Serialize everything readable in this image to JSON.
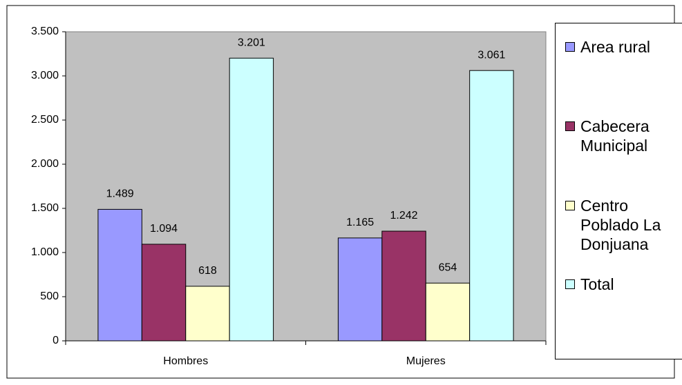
{
  "chart_data": {
    "type": "bar",
    "categories": [
      "Hombres",
      "Mujeres"
    ],
    "series": [
      {
        "name": "Area rural",
        "color": "#9999ff",
        "values": [
          1489,
          1165
        ],
        "value_labels": [
          "1.489",
          "1.165"
        ]
      },
      {
        "name": "Cabecera Municipal",
        "color": "#993366",
        "values": [
          1094,
          1242
        ],
        "value_labels": [
          "1.094",
          "1.242"
        ]
      },
      {
        "name": "Centro Poblado La Donjuana",
        "color": "#ffffcc",
        "values": [
          618,
          654
        ],
        "value_labels": [
          "618",
          "654"
        ]
      },
      {
        "name": "Total",
        "color": "#ccffff",
        "values": [
          3201,
          3061
        ],
        "value_labels": [
          "3.201",
          "3.061"
        ]
      }
    ],
    "ylim": [
      0,
      3500
    ],
    "yticks": [
      0,
      500,
      {
        "value": 1000,
        "label": "1.000"
      },
      {
        "value": 1500,
        "label": "1.500"
      },
      {
        "value": 2000,
        "label": "2.000"
      },
      {
        "value": 2500,
        "label": "2.500"
      },
      {
        "value": 3000,
        "label": "3.000"
      },
      {
        "value": 3500,
        "label": "3.500"
      }
    ],
    "plot_background": "#c0c0c0",
    "legend": "right"
  }
}
